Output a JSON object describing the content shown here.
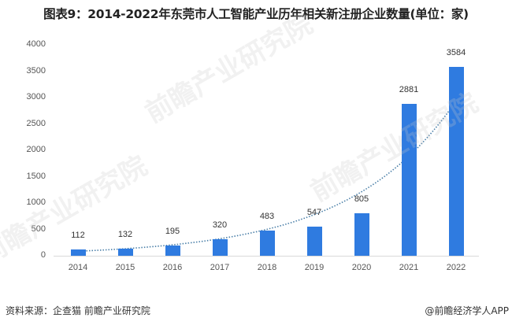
{
  "title": "图表9：2014-2022年东莞市人工智能产业历年相关新注册企业数量(单位：家)",
  "footer": {
    "source": "资料来源：企查猫 前瞻产业研究院",
    "credit": "@前瞻经济学人APP"
  },
  "watermarks": [
    "前瞻产业研究院",
    "前瞻产业研究院",
    "前瞻产业研究院"
  ],
  "colors": {
    "bar": "#2f7be0",
    "trend": "#4a7fa8",
    "axis": "#d9d9d9"
  },
  "y_ticks": [
    "4000",
    "3500",
    "3000",
    "2500",
    "2000",
    "1500",
    "1000",
    "500",
    "0"
  ],
  "chart_data": {
    "type": "bar",
    "title": "图表9：2014-2022年东莞市人工智能产业历年相关新注册企业数量(单位：家)",
    "xlabel": "",
    "ylabel": "",
    "categories": [
      "2014",
      "2015",
      "2016",
      "2017",
      "2018",
      "2019",
      "2020",
      "2021",
      "2022"
    ],
    "values": [
      112,
      132,
      195,
      320,
      483,
      547,
      805,
      2881,
      3584
    ],
    "labels": [
      "112",
      "132",
      "195",
      "320",
      "483",
      "547",
      "805",
      "2881",
      "3584"
    ],
    "ylim": [
      0,
      4000
    ],
    "y_ticks": [
      0,
      500,
      1000,
      1500,
      2000,
      2500,
      3000,
      3500,
      4000
    ],
    "grid": false,
    "trendline": {
      "type": "exponential",
      "style": "dotted"
    },
    "legend": null
  }
}
